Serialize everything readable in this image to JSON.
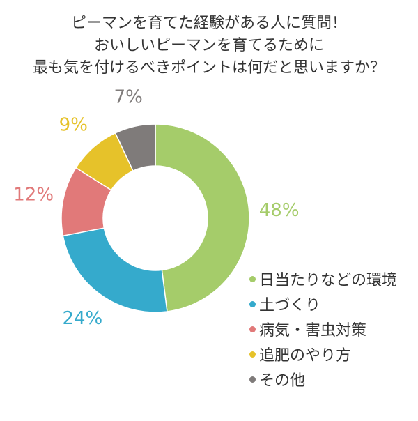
{
  "chart_data": {
    "type": "pie",
    "variant": "donut",
    "title_lines": [
      "ピーマンを育てた経験がある人に質問！",
      "おいしいピーマンを育てるために",
      "最も気を付けるべきポイントは何だと思いますか？"
    ],
    "categories": [
      "日当たりなどの環境",
      "土づくり",
      "病気・害虫対策",
      "追肥のやり方",
      "その他"
    ],
    "values": [
      48,
      24,
      12,
      9,
      7
    ],
    "value_labels": [
      "48%",
      "24%",
      "12%",
      "9%",
      "7%"
    ],
    "colors": [
      "#a5cc6a",
      "#35aacc",
      "#e17979",
      "#e6c22a",
      "#7f7b7a"
    ],
    "legend_position": "bottom-right",
    "legend_marker": "●"
  }
}
